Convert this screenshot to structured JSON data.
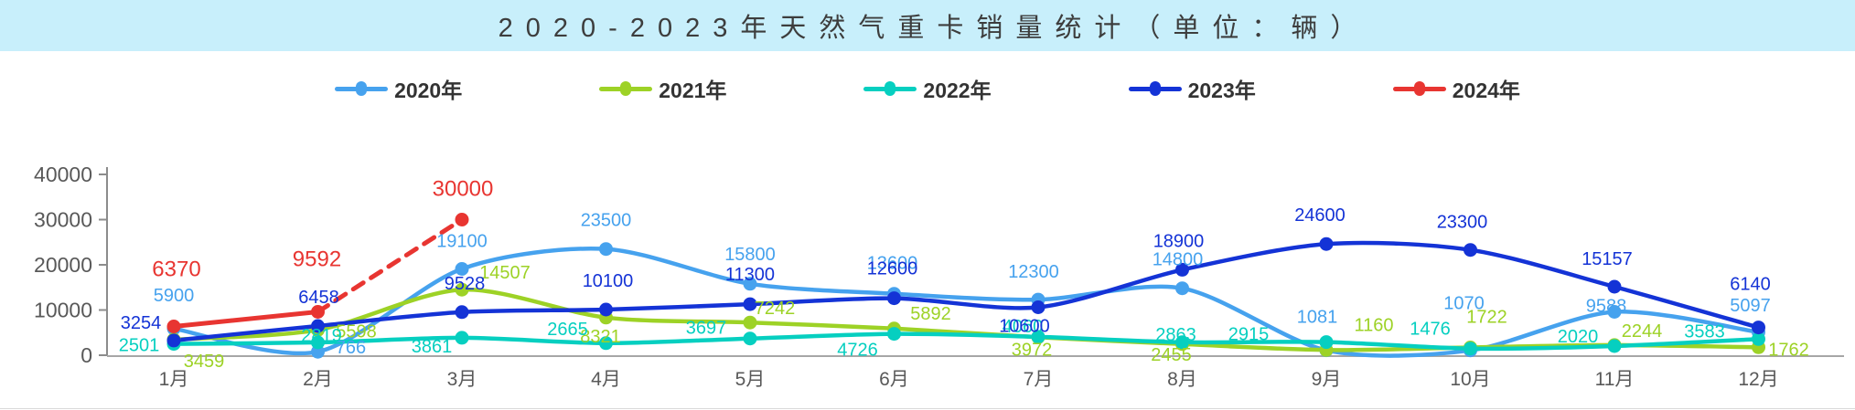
{
  "title_bar": {
    "title": "2020-2023年天然气重卡销量统计（单位：辆）"
  },
  "chart_data": {
    "type": "line",
    "title": "2020-2023年天然气重卡销量统计（单位：辆）",
    "unit_label": "辆",
    "categories": [
      "1月",
      "2月",
      "3月",
      "4月",
      "5月",
      "6月",
      "7月",
      "8月",
      "9月",
      "10月",
      "11月",
      "12月"
    ],
    "xlabel": "",
    "ylabel": "",
    "ylim": [
      0,
      40000
    ],
    "yticks": [
      0,
      10000,
      20000,
      30000,
      40000
    ],
    "grid": false,
    "smooth": true,
    "legend_position": "top",
    "axis_color": "#8c8c8c",
    "tick_label_color": "#595959",
    "series": [
      {
        "name": "2020年",
        "color": "#46a2ee",
        "values": [
          5900,
          766,
          19100,
          23500,
          15800,
          13600,
          12300,
          14800,
          1081,
          1070,
          9588,
          5097
        ]
      },
      {
        "name": "2021年",
        "color": "#9dd226",
        "values": [
          3459,
          5598,
          14507,
          8321,
          7242,
          5892,
          3972,
          2455,
          1160,
          1722,
          2244,
          1762
        ]
      },
      {
        "name": "2022年",
        "color": "#06cfc0",
        "values": [
          2501,
          2819,
          3861,
          2665,
          3697,
          4726,
          4060,
          2863,
          2915,
          1476,
          2020,
          3583
        ]
      },
      {
        "name": "2023年",
        "color": "#1433d6",
        "values": [
          3254,
          6458,
          9528,
          10100,
          11300,
          12600,
          10600,
          18900,
          24600,
          23300,
          15157,
          6140
        ]
      },
      {
        "name": "2024年",
        "color": "#e83531",
        "values": [
          6370,
          9592,
          30000
        ],
        "dashed_from": 1
      }
    ]
  }
}
